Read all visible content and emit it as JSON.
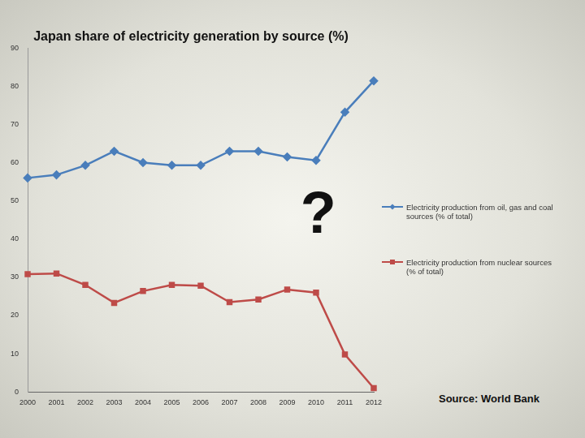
{
  "chart_data": {
    "type": "line",
    "title": "Japan share of electricity generation by source (%)",
    "annotation": "?",
    "source": "Source: World Bank",
    "categories": [
      "2000",
      "2001",
      "2002",
      "2003",
      "2004",
      "2005",
      "2006",
      "2007",
      "2008",
      "2009",
      "2010",
      "2011",
      "2012"
    ],
    "series": [
      {
        "name": "Electricity production from oil, gas and coal sources (% of total)",
        "color": "#4a7ebb",
        "marker": "diamond",
        "values": [
          56,
          56.8,
          59.3,
          63,
          60,
          59.3,
          59.3,
          63,
          63,
          61.5,
          60.6,
          73.2,
          81.4
        ]
      },
      {
        "name": "Electricity production from nuclear sources (% of total)",
        "color": "#be4b48",
        "marker": "square",
        "values": [
          30.8,
          31,
          28,
          23.3,
          26.4,
          28,
          27.8,
          23.5,
          24.2,
          26.8,
          26,
          9.8,
          1
        ]
      }
    ],
    "ylim": [
      0,
      90
    ],
    "yticks": [
      0,
      10,
      20,
      30,
      40,
      50,
      60,
      70,
      80,
      90
    ],
    "grid": false,
    "legend": "right"
  }
}
